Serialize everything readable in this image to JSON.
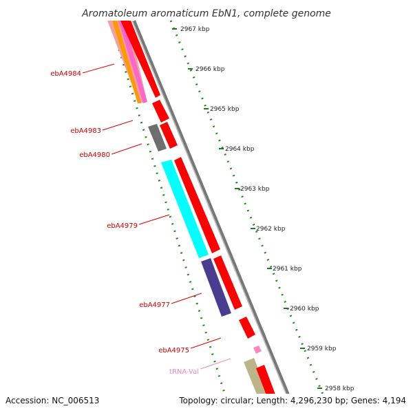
{
  "title": "Aromatoleum aromaticum EbN1, complete genome",
  "footer": {
    "accession": "Accession: NC_006513",
    "topology": "Topology: circular; Length: 4,296,230 bp; Genes: 4,194"
  },
  "colors": {
    "gene_forward": "#ff0000",
    "backbone": "#8c8c8c",
    "gc_ticks": "#228b22",
    "label_red": "#cc0000",
    "label_pink": "#ee88bb"
  },
  "kbp_labels": [
    "2967 kbp",
    "2966 kbp",
    "2965 kbp",
    "2964 kbp",
    "2963 kbp",
    "2962 kbp",
    "2961 kbp",
    "2960 kbp",
    "2959 kbp",
    "2958 kbp"
  ],
  "gene_labels": [
    "ebA4984",
    "ebA4983",
    "ebA4980",
    "ebA4979",
    "ebA4977",
    "ebA4975",
    "tRNA-Val"
  ]
}
